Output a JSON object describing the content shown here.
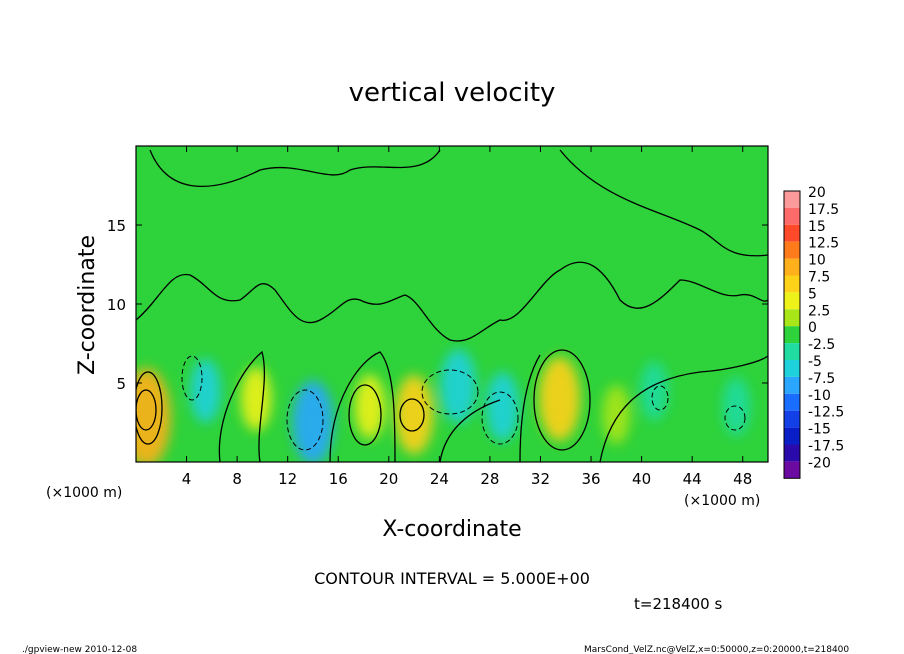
{
  "chart_data": {
    "type": "heatmap",
    "title": "vertical velocity",
    "xlabel": "X-coordinate",
    "ylabel": "Z-coordinate",
    "x_unit_note": "(×1000 m)",
    "y_unit_note": "(×1000 m)",
    "xlim": [
      0,
      50
    ],
    "ylim": [
      0,
      20
    ],
    "x_ticks": [
      4,
      8,
      12,
      16,
      20,
      24,
      28,
      32,
      36,
      40,
      44,
      48
    ],
    "y_ticks": [
      5,
      10,
      15
    ],
    "colorbar": {
      "labels": [
        "20",
        "17.5",
        "15",
        "12.5",
        "10",
        "7.5",
        "5",
        "2.5",
        "0",
        "-2.5",
        "-5",
        "-7.5",
        "-10",
        "-12.5",
        "-15",
        "-17.5",
        "-20"
      ],
      "colors": [
        "#ff9a9a",
        "#ff6a6a",
        "#ff4a2a",
        "#ff7a1a",
        "#ffb01a",
        "#ffd21a",
        "#eef21a",
        "#a8e61a",
        "#2ed23a",
        "#20dca0",
        "#1ed2dc",
        "#2aa6ff",
        "#1a6eff",
        "#1240e6",
        "#0a1ec8",
        "#2a0aaa",
        "#6a0aa0"
      ]
    },
    "features": [
      {
        "x": 0.8,
        "z": 2.8,
        "value": 11
      },
      {
        "x": 5.5,
        "z": 4.5,
        "value": -4
      },
      {
        "x": 9.5,
        "z": 4.0,
        "value": 4
      },
      {
        "x": 14.0,
        "z": 2.5,
        "value": -8
      },
      {
        "x": 18.5,
        "z": 3.5,
        "value": 4
      },
      {
        "x": 22.0,
        "z": 3.0,
        "value": 7
      },
      {
        "x": 25.5,
        "z": 4.8,
        "value": -6
      },
      {
        "x": 29.0,
        "z": 3.5,
        "value": -5
      },
      {
        "x": 33.5,
        "z": 4.0,
        "value": 8
      },
      {
        "x": 41.0,
        "z": 4.5,
        "value": -3
      },
      {
        "x": 47.5,
        "z": 3.5,
        "value": -3
      },
      {
        "x": 38.0,
        "z": 3.0,
        "value": 3
      }
    ],
    "annotations": {
      "contour_interval": "CONTOUR INTERVAL = 5.000E+00",
      "time": "t=218400  s"
    }
  },
  "footer": {
    "left": "./gpview-new  2010-12-08",
    "right": "MarsCond_VelZ.nc@VelZ,x=0:50000,z=0:20000,t=218400"
  }
}
